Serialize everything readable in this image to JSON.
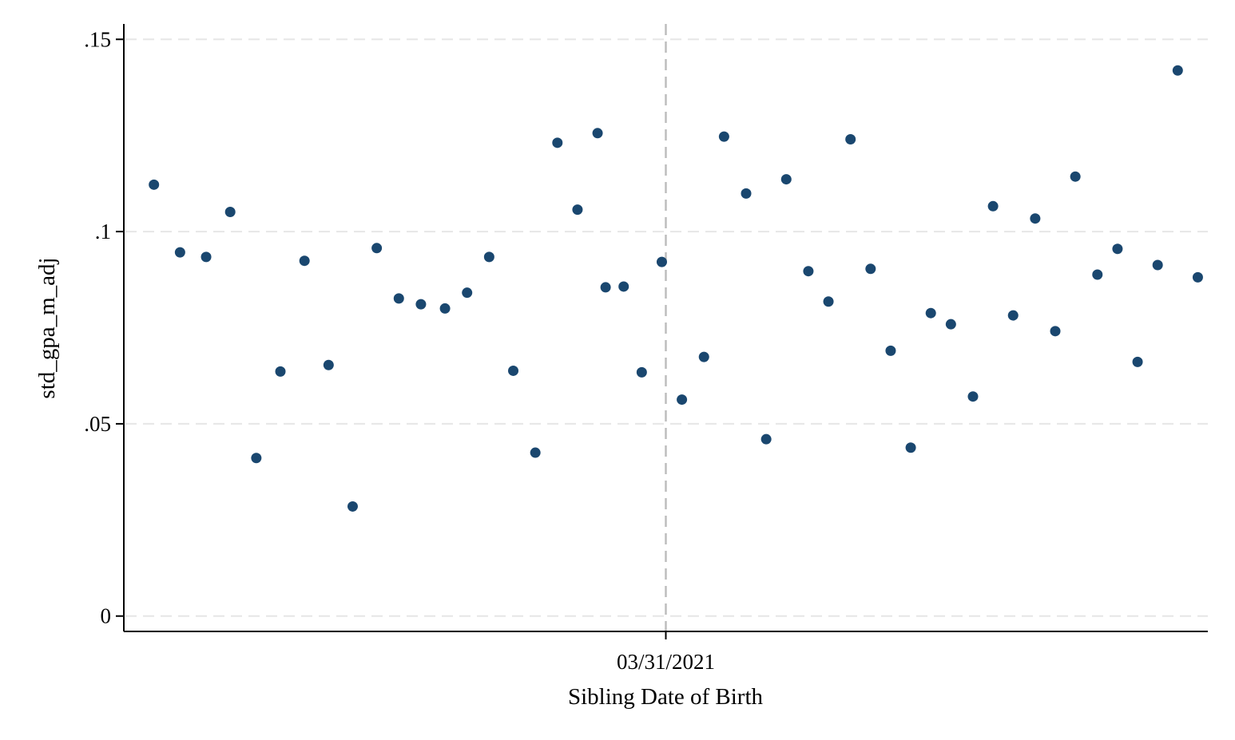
{
  "chart_data": {
    "type": "scatter",
    "xlabel": "Sibling Date of Birth",
    "ylabel": "std_gpa_m_adj",
    "ylim": [
      -0.004,
      0.154
    ],
    "xlim": [
      -27,
      27
    ],
    "y_ticks": [
      {
        "value": 0,
        "label": "0"
      },
      {
        "value": 0.05,
        "label": ".05"
      },
      {
        "value": 0.1,
        "label": ".1"
      },
      {
        "value": 0.15,
        "label": ".15"
      }
    ],
    "x_ticks": [
      {
        "value": 0,
        "label": "03/31/2021"
      }
    ],
    "cutoff": {
      "x": 0,
      "style": "dashed",
      "color": "#bdbdbd"
    },
    "grid": {
      "horizontal": true,
      "vertical": false
    },
    "point_color": "#1a476f",
    "points": [
      {
        "x": -25.5,
        "y": 0.1122
      },
      {
        "x": -24.2,
        "y": 0.0946
      },
      {
        "x": -22.9,
        "y": 0.0934
      },
      {
        "x": -21.7,
        "y": 0.1051
      },
      {
        "x": -20.4,
        "y": 0.0411
      },
      {
        "x": -19.2,
        "y": 0.0636
      },
      {
        "x": -18.0,
        "y": 0.0924
      },
      {
        "x": -16.8,
        "y": 0.0653
      },
      {
        "x": -15.6,
        "y": 0.0285
      },
      {
        "x": -14.4,
        "y": 0.0957
      },
      {
        "x": -13.3,
        "y": 0.0826
      },
      {
        "x": -12.2,
        "y": 0.0811
      },
      {
        "x": -11.0,
        "y": 0.08
      },
      {
        "x": -9.9,
        "y": 0.0841
      },
      {
        "x": -8.8,
        "y": 0.0934
      },
      {
        "x": -7.6,
        "y": 0.0638
      },
      {
        "x": -6.5,
        "y": 0.0425
      },
      {
        "x": -5.4,
        "y": 0.1231
      },
      {
        "x": -4.4,
        "y": 0.1057
      },
      {
        "x": -3.4,
        "y": 0.1256
      },
      {
        "x": -3.0,
        "y": 0.0855
      },
      {
        "x": -2.1,
        "y": 0.0857
      },
      {
        "x": -1.2,
        "y": 0.0634
      },
      {
        "x": -0.2,
        "y": 0.0921
      },
      {
        "x": 0.8,
        "y": 0.0563
      },
      {
        "x": 1.9,
        "y": 0.0674
      },
      {
        "x": 2.9,
        "y": 0.1247
      },
      {
        "x": 4.0,
        "y": 0.1099
      },
      {
        "x": 5.0,
        "y": 0.046
      },
      {
        "x": 6.0,
        "y": 0.1136
      },
      {
        "x": 7.1,
        "y": 0.0897
      },
      {
        "x": 8.1,
        "y": 0.0818
      },
      {
        "x": 9.2,
        "y": 0.124
      },
      {
        "x": 10.2,
        "y": 0.0903
      },
      {
        "x": 11.2,
        "y": 0.069
      },
      {
        "x": 12.2,
        "y": 0.0438
      },
      {
        "x": 13.2,
        "y": 0.0788
      },
      {
        "x": 14.2,
        "y": 0.0759
      },
      {
        "x": 15.3,
        "y": 0.0571
      },
      {
        "x": 16.3,
        "y": 0.1066
      },
      {
        "x": 17.3,
        "y": 0.0782
      },
      {
        "x": 18.4,
        "y": 0.1034
      },
      {
        "x": 19.4,
        "y": 0.0741
      },
      {
        "x": 20.4,
        "y": 0.1143
      },
      {
        "x": 21.5,
        "y": 0.0888
      },
      {
        "x": 22.5,
        "y": 0.0955
      },
      {
        "x": 23.5,
        "y": 0.0661
      },
      {
        "x": 24.5,
        "y": 0.0913
      },
      {
        "x": 25.5,
        "y": 0.1419
      },
      {
        "x": 26.5,
        "y": 0.0881
      }
    ]
  }
}
